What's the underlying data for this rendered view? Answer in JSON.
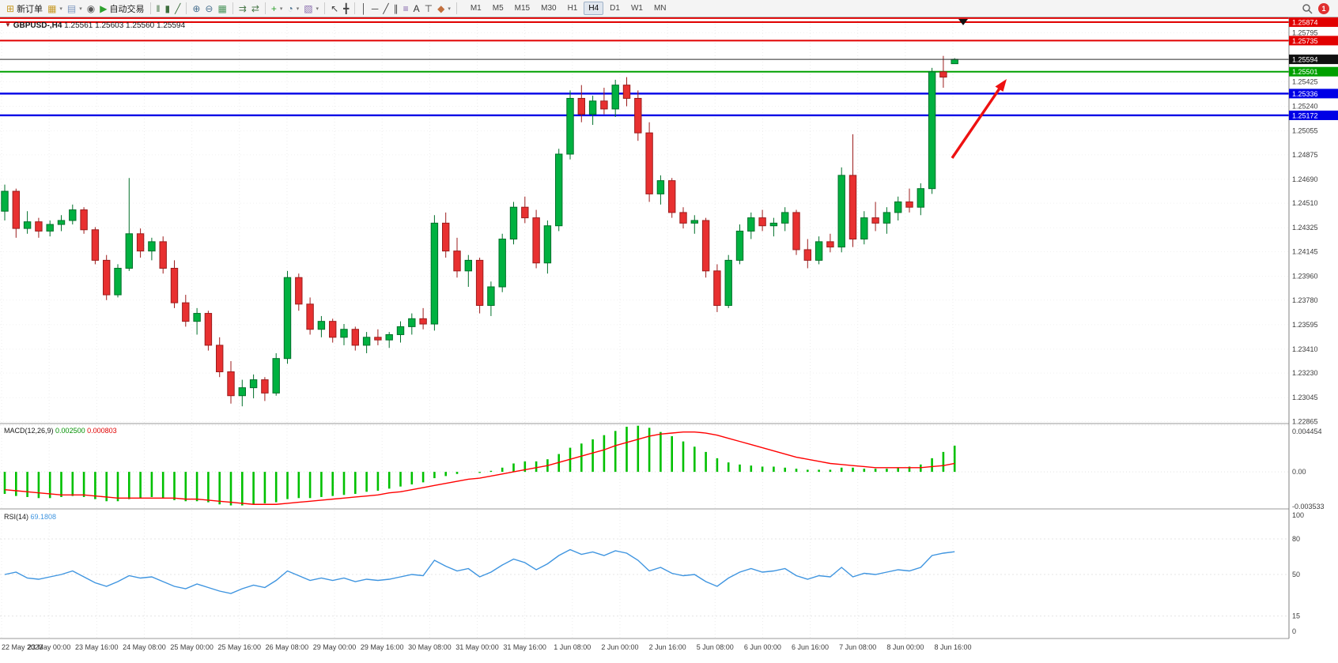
{
  "toolbar": {
    "notification_count": "1",
    "dropdown_glyph": "▾",
    "timeframes": [
      "M1",
      "M5",
      "M15",
      "M30",
      "H1",
      "H4",
      "D1",
      "W1",
      "MN"
    ],
    "active_timeframe": "H4",
    "items": [
      {
        "name": "new-order-button",
        "glyph": "⊞",
        "color": "#c79a27",
        "label": "新订单"
      },
      {
        "name": "new-chart-button",
        "glyph": "▦",
        "color": "#c79a27",
        "dropdown": true
      },
      {
        "name": "profiles-button",
        "glyph": "▤",
        "color": "#7b96bd",
        "dropdown": true
      },
      {
        "name": "community-button",
        "glyph": "◉",
        "color": "#5a5a5a"
      },
      {
        "name": "auto-trading-button",
        "glyph": "▶",
        "color": "#2ea12e",
        "label": "自动交易"
      },
      {
        "sep": true
      },
      {
        "name": "bar-chart-button",
        "glyph": "‖",
        "color": "#3e6f3e"
      },
      {
        "name": "candlestick-chart-button",
        "glyph": "▮",
        "color": "#3e6f3e"
      },
      {
        "name": "line-chart-button",
        "glyph": "╱",
        "color": "#3e6f3e"
      },
      {
        "sep": true
      },
      {
        "name": "zoom-in-button",
        "glyph": "⊕",
        "color": "#49708f"
      },
      {
        "name": "zoom-out-button",
        "glyph": "⊖",
        "color": "#49708f"
      },
      {
        "name": "tile-windows-button",
        "glyph": "▦",
        "color": "#49935a"
      },
      {
        "sep": true
      },
      {
        "name": "auto-scroll-button",
        "glyph": "⇉",
        "color": "#4c7a4c"
      },
      {
        "name": "chart-shift-button",
        "glyph": "⇄",
        "color": "#4c7a4c"
      },
      {
        "sep": true
      },
      {
        "name": "indicators-button",
        "glyph": "+",
        "color": "#2ea12e",
        "dropdown": true
      },
      {
        "name": "periods-button",
        "glyph": "◔",
        "color": "#49708f",
        "dropdown": true
      },
      {
        "name": "templates-button",
        "glyph": "▧",
        "color": "#8a6fae",
        "dropdown": true
      },
      {
        "sep": true
      },
      {
        "name": "cursor-button",
        "glyph": "↖",
        "color": "#444444"
      },
      {
        "name": "crosshair-button",
        "glyph": "╋",
        "color": "#444444"
      },
      {
        "sep": true
      },
      {
        "name": "vertical-line-button",
        "glyph": "│",
        "color": "#444444"
      },
      {
        "name": "horizontal-line-button",
        "glyph": "─",
        "color": "#444444"
      },
      {
        "name": "trendline-button",
        "glyph": "╱",
        "color": "#444444"
      },
      {
        "name": "channel-button",
        "glyph": "∥",
        "color": "#444444"
      },
      {
        "name": "fibonacci-button",
        "glyph": "≡",
        "color": "#7d5ba6"
      },
      {
        "name": "text-button",
        "glyph": "A",
        "color": "#333333"
      },
      {
        "name": "text-label-button",
        "glyph": "⊤",
        "color": "#333333"
      },
      {
        "name": "shapes-button",
        "glyph": "◆",
        "color": "#c2703e",
        "dropdown": true
      },
      {
        "sep": true
      }
    ]
  },
  "icons": {
    "collapse": "▼"
  },
  "chart": {
    "symbol": "GBPUSD-,H4",
    "open": "1.25561",
    "high": "1.25603",
    "low": "1.25560",
    "close": "1.25594",
    "scale": {
      "top": 1.2591,
      "bottom": 1.2285
    },
    "price_ticks": [
      "1.25795",
      "1.25425",
      "1.25240",
      "1.25055",
      "1.24875",
      "1.24690",
      "1.24510",
      "1.24325",
      "1.24145",
      "1.23960",
      "1.23780",
      "1.23595",
      "1.23410",
      "1.23230",
      "1.23045",
      "1.22865"
    ],
    "levels": [
      {
        "price": 1.25905,
        "color": "#e10000",
        "width": 2
      },
      {
        "price": 1.25874,
        "color": "#e10000",
        "width": 2,
        "label": "1.25874"
      },
      {
        "price": 1.25735,
        "color": "#e10000",
        "width": 2,
        "label": "1.25735"
      },
      {
        "price": 1.25501,
        "color": "#00a000",
        "width": 2,
        "label": "1.25501"
      },
      {
        "price": 1.25336,
        "color": "#0000e6",
        "width": 2.4,
        "label": "1.25336"
      },
      {
        "price": 1.25172,
        "color": "#0000e6",
        "width": 2.4,
        "label": "1.25172"
      }
    ],
    "bid": {
      "price": 1.25594,
      "label": "1.25594"
    },
    "colors": {
      "up": "#00b140",
      "up_stroke": "#00702a",
      "down": "#e83030",
      "down_stroke": "#9c1c1c",
      "macd_hist": "#00c000",
      "macd_signal": "#ff0000",
      "rsi": "#3f95e0",
      "tag_black": "#101010"
    }
  },
  "indicators": {
    "macd": {
      "name": "MACD(12,26,9)",
      "main_value": "0.002500",
      "signal_value": "0.000803",
      "axis_labels": [
        "0.004454",
        "0.00",
        "-0.003533"
      ]
    },
    "rsi": {
      "name": "RSI(14)",
      "value": "69.1808",
      "axis_labels": [
        "100",
        "80",
        "50",
        "15",
        "0"
      ]
    }
  },
  "chart_data": {
    "type": "candlestick",
    "symbol": "GBPUSD",
    "timeframe": "H4",
    "x_labels": [
      "22 May 2023",
      "23 May 00:00",
      "23 May 16:00",
      "24 May 08:00",
      "25 May 00:00",
      "25 May 16:00",
      "26 May 08:00",
      "29 May 00:00",
      "29 May 16:00",
      "30 May 08:00",
      "31 May 00:00",
      "31 May 16:00",
      "1 Jun 08:00",
      "2 Jun 00:00",
      "2 Jun 16:00",
      "5 Jun 08:00",
      "6 Jun 00:00",
      "6 Jun 16:00",
      "7 Jun 08:00",
      "8 Jun 00:00",
      "8 Jun 16:00"
    ],
    "candles": [
      [
        1.2445,
        1.2465,
        1.2438,
        1.246
      ],
      [
        1.246,
        1.2462,
        1.2425,
        1.2432
      ],
      [
        1.2432,
        1.2445,
        1.2428,
        1.2437
      ],
      [
        1.2437,
        1.244,
        1.2425,
        1.243
      ],
      [
        1.243,
        1.2438,
        1.2426,
        1.2435
      ],
      [
        1.2435,
        1.2442,
        1.243,
        1.2438
      ],
      [
        1.2438,
        1.245,
        1.2435,
        1.2446
      ],
      [
        1.2446,
        1.2448,
        1.2428,
        1.2431
      ],
      [
        1.2431,
        1.2433,
        1.2405,
        1.2408
      ],
      [
        1.2408,
        1.2412,
        1.2378,
        1.2382
      ],
      [
        1.2382,
        1.2405,
        1.238,
        1.2402
      ],
      [
        1.2402,
        1.247,
        1.24,
        1.2428
      ],
      [
        1.2428,
        1.2432,
        1.241,
        1.2415
      ],
      [
        1.2415,
        1.2425,
        1.2408,
        1.2422
      ],
      [
        1.2422,
        1.2426,
        1.2398,
        1.2402
      ],
      [
        1.2402,
        1.2408,
        1.2372,
        1.2376
      ],
      [
        1.2376,
        1.2382,
        1.2358,
        1.2362
      ],
      [
        1.2362,
        1.2372,
        1.2352,
        1.2368
      ],
      [
        1.2368,
        1.237,
        1.234,
        1.2344
      ],
      [
        1.2344,
        1.235,
        1.232,
        1.2324
      ],
      [
        1.2324,
        1.2332,
        1.23,
        1.2306
      ],
      [
        1.2306,
        1.2318,
        1.2298,
        1.2312
      ],
      [
        1.2312,
        1.2322,
        1.2304,
        1.2318
      ],
      [
        1.2318,
        1.232,
        1.2302,
        1.2308
      ],
      [
        1.2308,
        1.2338,
        1.2306,
        1.2334
      ],
      [
        1.2334,
        1.24,
        1.233,
        1.2395
      ],
      [
        1.2395,
        1.2398,
        1.237,
        1.2375
      ],
      [
        1.2375,
        1.238,
        1.2352,
        1.2356
      ],
      [
        1.2356,
        1.2366,
        1.235,
        1.2362
      ],
      [
        1.2362,
        1.2364,
        1.2346,
        1.235
      ],
      [
        1.235,
        1.236,
        1.2344,
        1.2356
      ],
      [
        1.2356,
        1.2358,
        1.234,
        1.2344
      ],
      [
        1.2344,
        1.2354,
        1.2338,
        1.235
      ],
      [
        1.235,
        1.2356,
        1.2344,
        1.2348
      ],
      [
        1.2348,
        1.2354,
        1.2342,
        1.2352
      ],
      [
        1.2352,
        1.2362,
        1.2346,
        1.2358
      ],
      [
        1.2358,
        1.2368,
        1.2352,
        1.2364
      ],
      [
        1.2364,
        1.2372,
        1.2356,
        1.236
      ],
      [
        1.236,
        1.2442,
        1.2355,
        1.2436
      ],
      [
        1.2436,
        1.2444,
        1.241,
        1.2415
      ],
      [
        1.2415,
        1.2425,
        1.2395,
        1.24
      ],
      [
        1.24,
        1.2412,
        1.2388,
        1.2408
      ],
      [
        1.2408,
        1.241,
        1.2368,
        1.2374
      ],
      [
        1.2374,
        1.2392,
        1.2366,
        1.2388
      ],
      [
        1.2388,
        1.2428,
        1.2384,
        1.2424
      ],
      [
        1.2424,
        1.2452,
        1.242,
        1.2448
      ],
      [
        1.2448,
        1.2456,
        1.2436,
        1.244
      ],
      [
        1.244,
        1.2446,
        1.2402,
        1.2406
      ],
      [
        1.2406,
        1.2438,
        1.2398,
        1.2434
      ],
      [
        1.2434,
        1.2492,
        1.243,
        1.2488
      ],
      [
        1.2488,
        1.2536,
        1.2484,
        1.253
      ],
      [
        1.253,
        1.254,
        1.2512,
        1.2518
      ],
      [
        1.2518,
        1.2532,
        1.251,
        1.2528
      ],
      [
        1.2528,
        1.2538,
        1.2518,
        1.2522
      ],
      [
        1.2522,
        1.2544,
        1.2516,
        1.254
      ],
      [
        1.254,
        1.2546,
        1.2524,
        1.253
      ],
      [
        1.253,
        1.2536,
        1.2498,
        1.2504
      ],
      [
        1.2504,
        1.2512,
        1.2452,
        1.2458
      ],
      [
        1.2458,
        1.2472,
        1.245,
        1.2468
      ],
      [
        1.2468,
        1.247,
        1.244,
        1.2444
      ],
      [
        1.2444,
        1.2448,
        1.2432,
        1.2436
      ],
      [
        1.2436,
        1.2442,
        1.2428,
        1.2438
      ],
      [
        1.2438,
        1.244,
        1.2395,
        1.24
      ],
      [
        1.24,
        1.2405,
        1.2369,
        1.2374
      ],
      [
        1.2374,
        1.2412,
        1.2372,
        1.2408
      ],
      [
        1.2408,
        1.2435,
        1.2405,
        1.243
      ],
      [
        1.243,
        1.2444,
        1.2424,
        1.244
      ],
      [
        1.244,
        1.2446,
        1.243,
        1.2434
      ],
      [
        1.2434,
        1.244,
        1.2426,
        1.2436
      ],
      [
        1.2436,
        1.2448,
        1.243,
        1.2444
      ],
      [
        1.2444,
        1.2446,
        1.2412,
        1.2416
      ],
      [
        1.2416,
        1.2424,
        1.2402,
        1.2408
      ],
      [
        1.2408,
        1.2426,
        1.2405,
        1.2422
      ],
      [
        1.2422,
        1.2428,
        1.2414,
        1.2418
      ],
      [
        1.2418,
        1.2478,
        1.2414,
        1.2472
      ],
      [
        1.2472,
        1.2503,
        1.2418,
        1.2424
      ],
      [
        1.2424,
        1.2445,
        1.242,
        1.244
      ],
      [
        1.244,
        1.2452,
        1.243,
        1.2436
      ],
      [
        1.2436,
        1.2448,
        1.2428,
        1.2444
      ],
      [
        1.2444,
        1.2456,
        1.2438,
        1.2452
      ],
      [
        1.2452,
        1.2462,
        1.2444,
        1.2448
      ],
      [
        1.2448,
        1.2466,
        1.2442,
        1.2462
      ],
      [
        1.2462,
        1.2553,
        1.2458,
        1.255
      ],
      [
        1.255,
        1.2562,
        1.2538,
        1.2546
      ],
      [
        1.25561,
        1.25603,
        1.2556,
        1.25594
      ]
    ],
    "macd": {
      "values": [
        -0.0021,
        -0.0023,
        -0.0024,
        -0.0025,
        -0.0025,
        -0.0024,
        -0.0023,
        -0.0024,
        -0.0026,
        -0.0028,
        -0.0028,
        -0.0026,
        -0.0025,
        -0.0024,
        -0.0025,
        -0.0027,
        -0.0028,
        -0.0028,
        -0.0029,
        -0.0031,
        -0.0032,
        -0.0032,
        -0.0031,
        -0.003,
        -0.0029,
        -0.0026,
        -0.0025,
        -0.0025,
        -0.0024,
        -0.0023,
        -0.0022,
        -0.0021,
        -0.0019,
        -0.0018,
        -0.0016,
        -0.0014,
        -0.0012,
        -0.001,
        -0.0006,
        -0.0004,
        -0.0002,
        0.0,
        -0.0001,
        0.0001,
        0.0004,
        0.0008,
        0.001,
        0.001,
        0.0012,
        0.0017,
        0.0023,
        0.0027,
        0.0031,
        0.0035,
        0.0039,
        0.0043,
        0.0044,
        0.0042,
        0.0038,
        0.0034,
        0.0029,
        0.0024,
        0.0019,
        0.0013,
        0.0009,
        0.0007,
        0.0006,
        0.0005,
        0.0005,
        0.0004,
        0.0003,
        0.0002,
        0.0002,
        0.0002,
        0.0004,
        0.0004,
        0.0003,
        0.0003,
        0.0003,
        0.0004,
        0.0005,
        0.0007,
        0.0013,
        0.0019,
        0.0025
      ],
      "signal": [
        -0.0017,
        -0.0018,
        -0.0019,
        -0.002,
        -0.0021,
        -0.0022,
        -0.0022,
        -0.0022,
        -0.0023,
        -0.0024,
        -0.0025,
        -0.0025,
        -0.0025,
        -0.0025,
        -0.0025,
        -0.0025,
        -0.0026,
        -0.0026,
        -0.0027,
        -0.0028,
        -0.0029,
        -0.003,
        -0.0031,
        -0.0031,
        -0.0031,
        -0.003,
        -0.0029,
        -0.0028,
        -0.0027,
        -0.0026,
        -0.0025,
        -0.0024,
        -0.0023,
        -0.0022,
        -0.002,
        -0.0019,
        -0.0017,
        -0.0015,
        -0.0013,
        -0.0011,
        -0.0009,
        -0.0007,
        -0.0006,
        -0.0004,
        -0.0002,
        0.0,
        0.0002,
        0.0004,
        0.0006,
        0.0009,
        0.0012,
        0.0015,
        0.0018,
        0.0021,
        0.0025,
        0.0028,
        0.0031,
        0.0034,
        0.0036,
        0.0037,
        0.0038,
        0.0038,
        0.0037,
        0.0035,
        0.0032,
        0.0029,
        0.0026,
        0.0023,
        0.002,
        0.0017,
        0.0014,
        0.0012,
        0.001,
        0.0008,
        0.0007,
        0.0006,
        0.0005,
        0.0004,
        0.0004,
        0.0004,
        0.0004,
        0.0004,
        0.0005,
        0.0006,
        0.0008
      ]
    },
    "rsi": {
      "values": [
        50,
        52,
        47,
        46,
        48,
        50,
        53,
        48,
        43,
        40,
        44,
        49,
        47,
        48,
        44,
        40,
        38,
        42,
        39,
        36,
        34,
        38,
        41,
        39,
        45,
        53,
        49,
        45,
        47,
        45,
        47,
        44,
        46,
        45,
        46,
        48,
        50,
        49,
        62,
        57,
        53,
        55,
        48,
        52,
        58,
        63,
        60,
        54,
        59,
        66,
        71,
        67,
        69,
        66,
        70,
        68,
        62,
        53,
        56,
        51,
        49,
        50,
        44,
        40,
        47,
        52,
        55,
        52,
        53,
        55,
        49,
        46,
        49,
        48,
        56,
        48,
        51,
        50,
        52,
        54,
        53,
        56,
        66,
        68,
        69.18
      ]
    }
  }
}
